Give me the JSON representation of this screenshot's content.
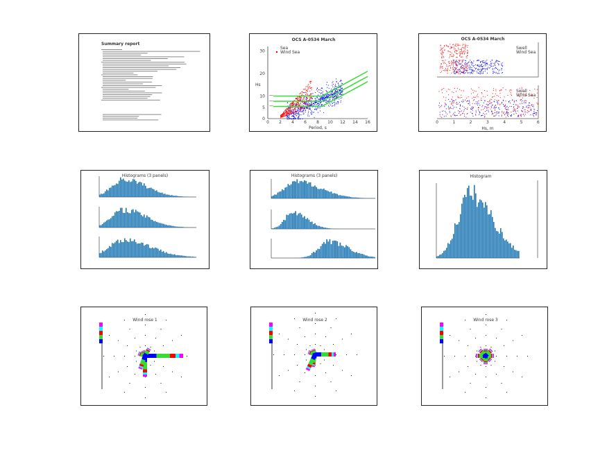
{
  "colors": {
    "red": "#ff0000",
    "blue": "#0000ff",
    "green": "#33dd33",
    "bar": "#1f77b4",
    "magenta": "#ff00ff",
    "cyan": "#00ffff"
  },
  "chart_data": [
    {
      "type": "table",
      "title": "Summary report"
    },
    {
      "type": "scatter",
      "title": "OCS A-0534 March",
      "xlabel": "Period, s",
      "ylabel": "Hs",
      "xlim": [
        0,
        16
      ],
      "ylim": [
        0,
        32
      ],
      "xticks": [
        "0",
        "2",
        "4",
        "6",
        "8",
        "10",
        "12",
        "14",
        "16"
      ],
      "yticks": [
        "0",
        "5",
        "10",
        "20",
        "30"
      ],
      "legend": [
        "Sea",
        "Wind Sea"
      ],
      "series": [
        {
          "name": "Sea",
          "color": "blue"
        },
        {
          "name": "Wind Sea",
          "color": "red"
        }
      ]
    },
    {
      "type": "scatter",
      "title": "OCS A-0534 March",
      "xlabel": "Hs, m",
      "xlim": [
        0,
        6
      ],
      "xticks": [
        "0",
        "1",
        "2",
        "3",
        "4",
        "5",
        "6"
      ],
      "legend": [
        "Swell",
        "Wind Sea"
      ]
    },
    {
      "type": "bar",
      "title": "Histograms (3 panels)"
    },
    {
      "type": "bar",
      "title": "Histograms (3 panels)"
    },
    {
      "type": "bar",
      "title": "Histogram"
    },
    {
      "type": "pie",
      "title": "Wind rose 1"
    },
    {
      "type": "pie",
      "title": "Wind rose 2"
    },
    {
      "type": "pie",
      "title": "Wind rose 3"
    }
  ]
}
